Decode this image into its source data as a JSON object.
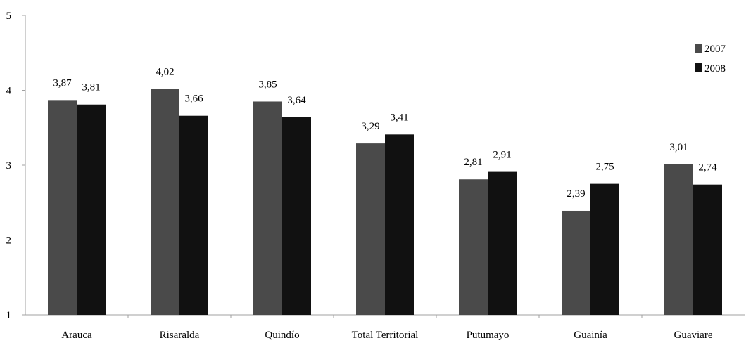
{
  "chart_data": {
    "type": "bar",
    "categories": [
      "Arauca",
      "Risaralda",
      "Quindío",
      "Total Territorial",
      "Putumayo",
      "Guainía",
      "Guaviare"
    ],
    "series": [
      {
        "name": "2007",
        "values": [
          3.87,
          4.02,
          3.85,
          3.29,
          2.81,
          2.39,
          3.01
        ],
        "labels": [
          "3,87",
          "4,02",
          "3,85",
          "3,29",
          "2,81",
          "2,39",
          "3,01"
        ],
        "color": "#4a4a4a"
      },
      {
        "name": "2008",
        "values": [
          3.81,
          3.66,
          3.64,
          3.41,
          2.91,
          2.75,
          2.74
        ],
        "labels": [
          "3,81",
          "3,66",
          "3,64",
          "3,41",
          "2,91",
          "2,75",
          "2,74"
        ],
        "color": "#111111"
      }
    ],
    "yticks": [
      "1",
      "2",
      "3",
      "4",
      "5"
    ],
    "ylim": [
      1,
      5
    ],
    "grid": false,
    "legend_position": "top-right",
    "axis_color": "#a0a0a0"
  }
}
